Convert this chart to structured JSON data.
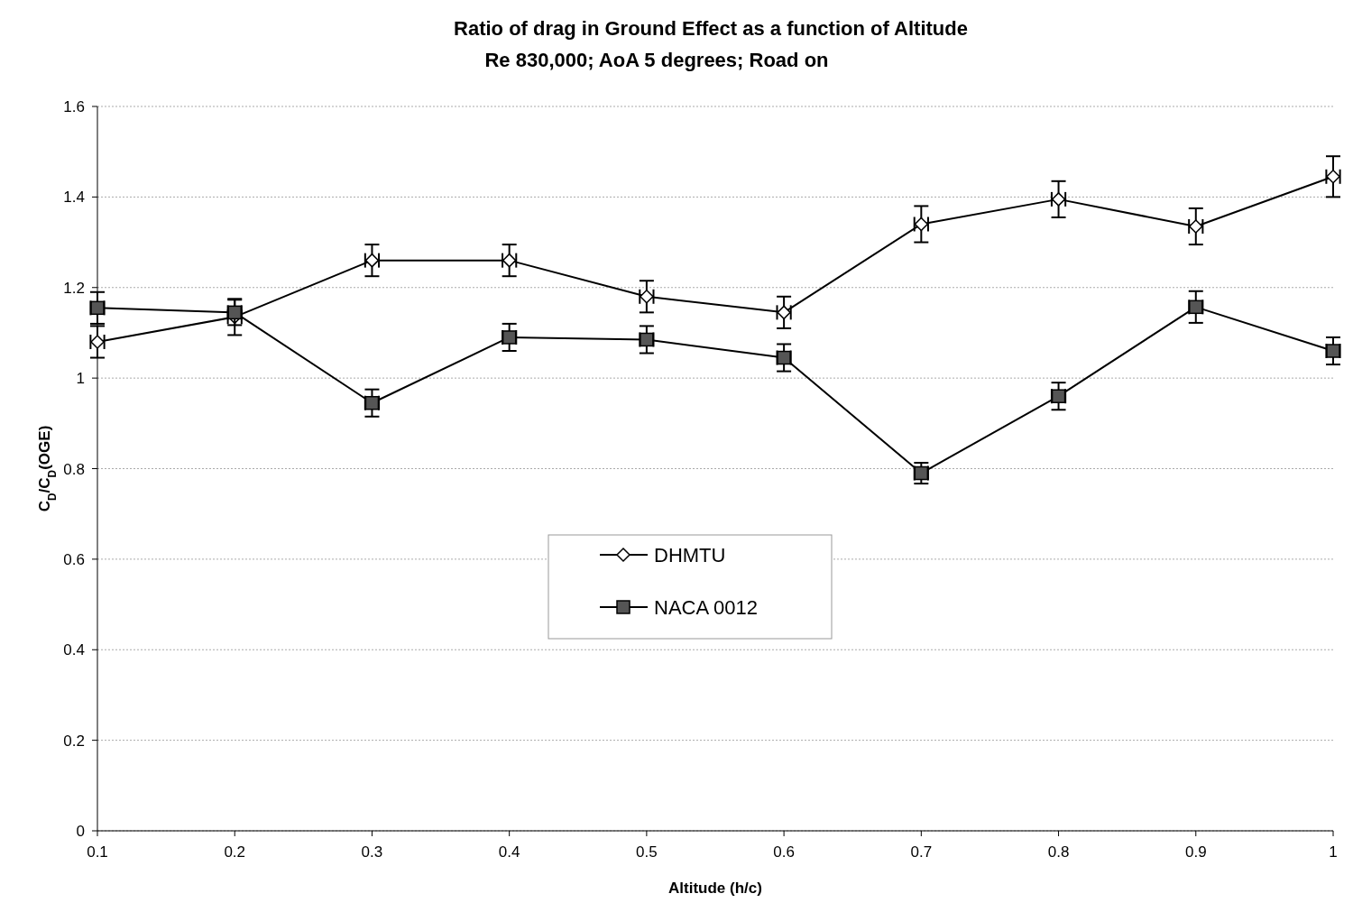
{
  "chart_data": {
    "type": "line",
    "title": "Ratio of drag in Ground Effect as a function of Altitude",
    "subtitle": "Re 830,000; AoA 5 degrees; Road on",
    "xlabel": "Altitude (h/c)",
    "ylabel": "C$_{D}$/C$_{D}$(OGE)",
    "x": [
      0.1,
      0.2,
      0.3,
      0.4,
      0.5,
      0.6,
      0.7,
      0.8,
      0.9,
      1
    ],
    "xlim": [
      0.1,
      1
    ],
    "xticks": [
      0.1,
      0.2,
      0.3,
      0.4,
      0.5,
      0.6,
      0.7,
      0.8,
      0.9,
      1
    ],
    "ylim": [
      0,
      1.6
    ],
    "yticks": [
      0,
      0.2,
      0.4,
      0.6,
      0.8,
      1,
      1.2,
      1.4,
      1.6
    ],
    "grid": "y",
    "legend": "center",
    "line_style": "solid",
    "series": [
      {
        "name": "DHMTU",
        "color": "#000000",
        "marker": "diamond",
        "values": [
          1.08,
          1.135,
          1.26,
          1.26,
          1.18,
          1.145,
          1.34,
          1.395,
          1.335,
          1.445
        ],
        "errors": [
          0.035,
          0.04,
          0.035,
          0.035,
          0.035,
          0.035,
          0.04,
          0.04,
          0.04,
          0.045
        ],
        "xerrors": [
          0.005,
          0.005,
          0.005,
          0.005,
          0.005,
          0.005,
          0.005,
          0.005,
          0.005,
          0.005
        ]
      },
      {
        "name": "NACA 0012",
        "color": "#000000",
        "marker": "square",
        "values": [
          1.155,
          1.145,
          0.945,
          1.09,
          1.085,
          1.045,
          0.79,
          0.96,
          1.157,
          1.06
        ],
        "errors": [
          0.035,
          0.028,
          0.03,
          0.03,
          0.03,
          0.03,
          0.023,
          0.03,
          0.035,
          0.03
        ],
        "xerrors": [
          0.005,
          0.005,
          0.005,
          0.005,
          0.005,
          0.005,
          0.005,
          0.005,
          0.005,
          0.005
        ]
      }
    ]
  }
}
